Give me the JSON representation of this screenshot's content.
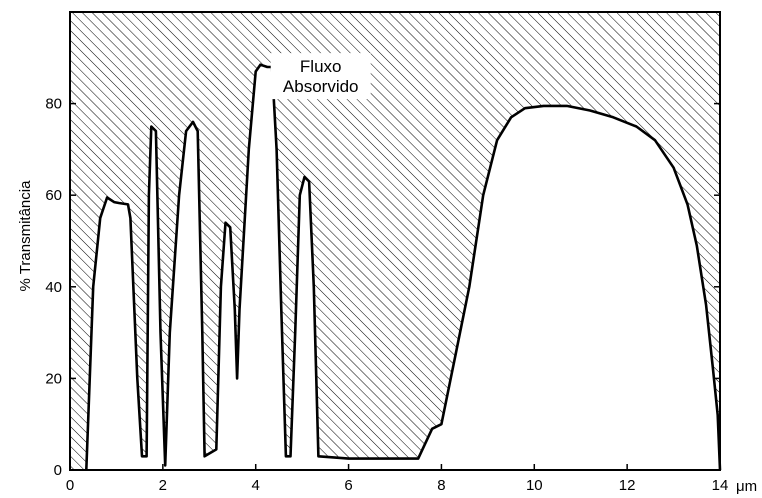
{
  "chart_data": {
    "type": "area",
    "title": "",
    "xlabel": "",
    "x_unit_label": "μm",
    "ylabel": "% Transmitância",
    "xlim": [
      0,
      14
    ],
    "ylim": [
      0,
      100
    ],
    "x_ticks": [
      0,
      2,
      4,
      6,
      8,
      10,
      12,
      14
    ],
    "x_tick_labels": [
      "0",
      "2",
      "4",
      "6",
      "8",
      "10",
      "12",
      "14"
    ],
    "y_ticks": [
      0,
      20,
      40,
      60,
      80
    ],
    "y_tick_labels": [
      "0",
      "20",
      "40",
      "60",
      "80"
    ],
    "grid": false,
    "legend": "none",
    "annotations": [
      {
        "text_lines": [
          "Fluxo",
          "Absorvido"
        ],
        "x": 5.4,
        "y": 86
      }
    ],
    "series": [
      {
        "fill_above": "hatched",
        "fill_below": "white",
        "points": [
          [
            0.35,
            0
          ],
          [
            0.5,
            40
          ],
          [
            0.65,
            55
          ],
          [
            0.8,
            59.5
          ],
          [
            0.95,
            58.5
          ],
          [
            1.05,
            58.3
          ],
          [
            1.25,
            58
          ],
          [
            1.3,
            55
          ],
          [
            1.45,
            20
          ],
          [
            1.55,
            3
          ],
          [
            1.65,
            3
          ],
          [
            1.7,
            60
          ],
          [
            1.75,
            75
          ],
          [
            1.85,
            74
          ],
          [
            1.95,
            30
          ],
          [
            2.05,
            1
          ],
          [
            2.15,
            30
          ],
          [
            2.35,
            60
          ],
          [
            2.5,
            74
          ],
          [
            2.65,
            76
          ],
          [
            2.75,
            74
          ],
          [
            2.85,
            30
          ],
          [
            2.9,
            3
          ],
          [
            3.15,
            4.5
          ],
          [
            3.25,
            40
          ],
          [
            3.35,
            54
          ],
          [
            3.45,
            53
          ],
          [
            3.55,
            35
          ],
          [
            3.6,
            20
          ],
          [
            3.65,
            35
          ],
          [
            3.85,
            70
          ],
          [
            4.0,
            87
          ],
          [
            4.1,
            88.5
          ],
          [
            4.25,
            88
          ],
          [
            4.35,
            88
          ],
          [
            4.45,
            70
          ],
          [
            4.55,
            35
          ],
          [
            4.65,
            3
          ],
          [
            4.75,
            3
          ],
          [
            4.85,
            30
          ],
          [
            4.95,
            60
          ],
          [
            5.05,
            64
          ],
          [
            5.15,
            63
          ],
          [
            5.25,
            40
          ],
          [
            5.35,
            3
          ],
          [
            6.0,
            2.5
          ],
          [
            7.0,
            2.5
          ],
          [
            7.5,
            2.5
          ],
          [
            7.8,
            9
          ],
          [
            8.0,
            10
          ],
          [
            8.3,
            25
          ],
          [
            8.6,
            40
          ],
          [
            8.9,
            60
          ],
          [
            9.2,
            72
          ],
          [
            9.5,
            77
          ],
          [
            9.8,
            79
          ],
          [
            10.2,
            79.5
          ],
          [
            10.7,
            79.5
          ],
          [
            11.2,
            78.5
          ],
          [
            11.7,
            77
          ],
          [
            12.2,
            75
          ],
          [
            12.6,
            72
          ],
          [
            13.0,
            66
          ],
          [
            13.3,
            58
          ],
          [
            13.5,
            49
          ],
          [
            13.7,
            36
          ],
          [
            13.85,
            22
          ],
          [
            13.95,
            12
          ],
          [
            14.0,
            0
          ]
        ]
      }
    ]
  }
}
